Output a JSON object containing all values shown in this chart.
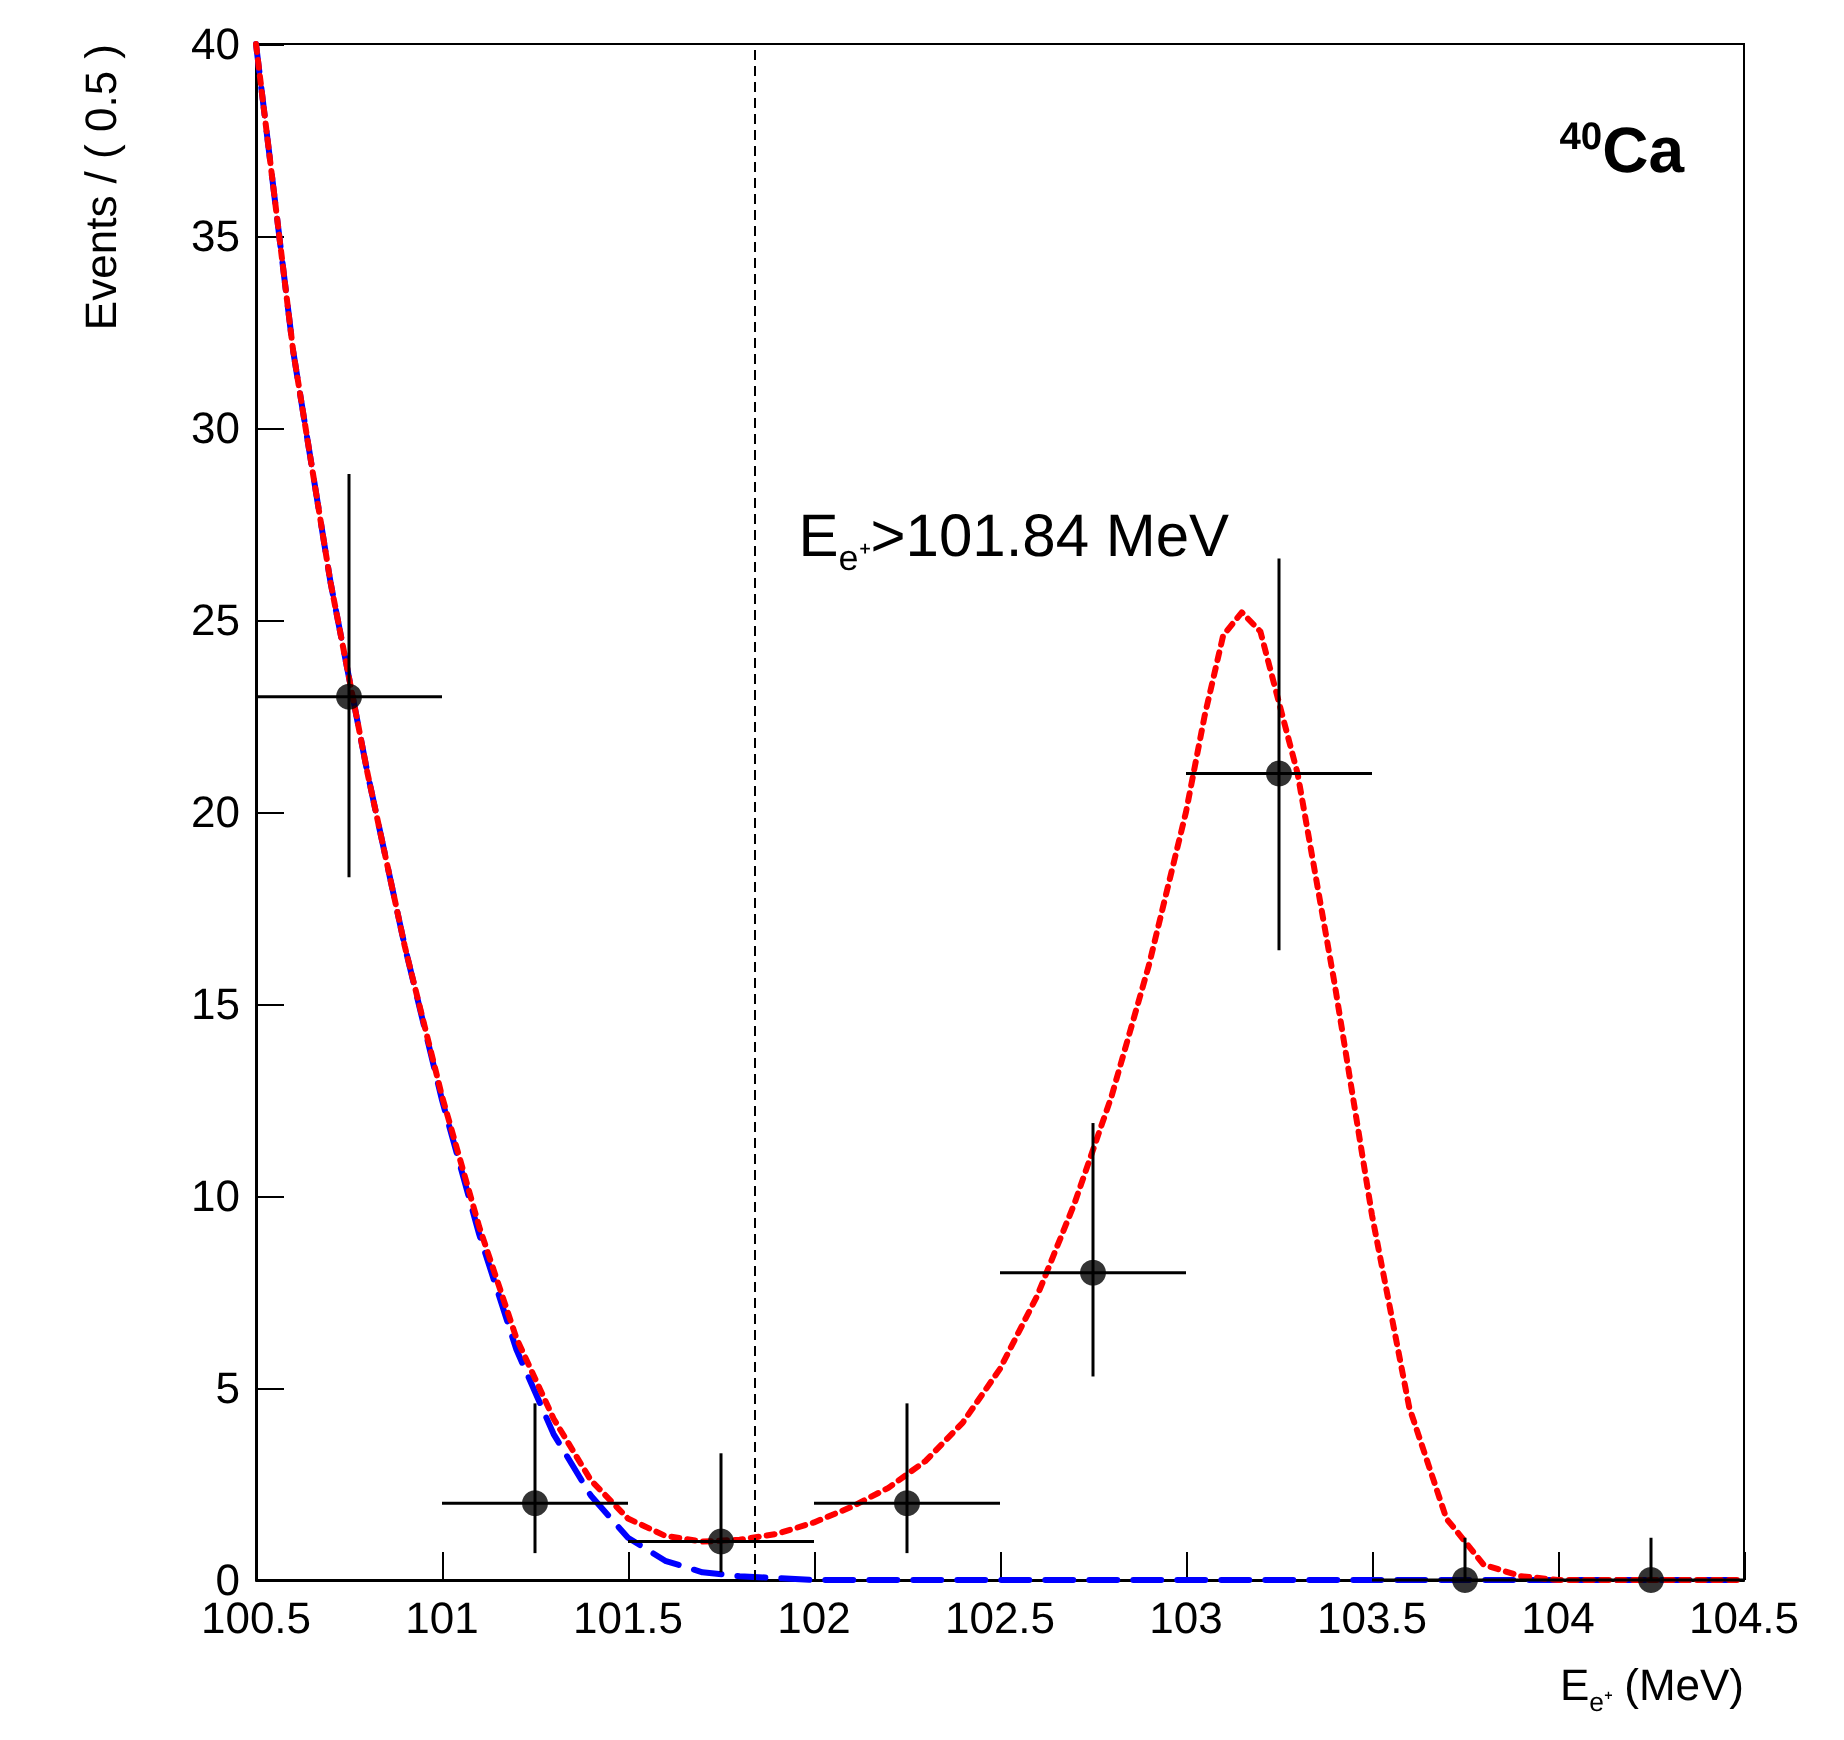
{
  "chart_data": {
    "type": "scatter",
    "xlabel": "E$_{e⁺}$ (MeV)",
    "ylabel": "Events / ( 0.5 )",
    "annotations": [
      "$^{40}$Ca"
    ],
    "xlim": [
      100.5,
      104.5
    ],
    "xticks": [
      100.5,
      101,
      101.5,
      102,
      102.5,
      103,
      103.5,
      104,
      104.5
    ],
    "ylim": [
      0,
      40
    ],
    "yticks": [
      0,
      5,
      10,
      15,
      20,
      25,
      30,
      35,
      40
    ],
    "grid": false,
    "ref_lines": [
      {
        "axis": "x",
        "value": 101.84,
        "label": "E$_{e⁺}$>101.84 MeV",
        "color": "#000000",
        "line_style": "dashed"
      }
    ],
    "series": [
      {
        "type": "line",
        "color": "#0000ff",
        "line_style": "dashed",
        "marker": "none",
        "x": [
          100.5,
          100.6,
          100.7,
          100.8,
          100.9,
          101.0,
          101.1,
          101.2,
          101.3,
          101.4,
          101.5,
          101.6,
          101.7,
          101.8,
          101.9,
          102.0,
          102.5,
          103,
          103.5,
          104,
          104.5
        ],
        "values": [
          40,
          32,
          26,
          21,
          16.5,
          12.5,
          9,
          6,
          3.8,
          2.2,
          1.1,
          0.5,
          0.2,
          0.1,
          0.05,
          0,
          0,
          0,
          0,
          0,
          0
        ]
      },
      {
        "type": "line",
        "color": "#ff0000",
        "line_style": "dotted",
        "marker": "none",
        "x": [
          100.5,
          100.6,
          100.7,
          100.8,
          100.9,
          101.0,
          101.1,
          101.2,
          101.3,
          101.4,
          101.5,
          101.6,
          101.7,
          101.8,
          101.9,
          102.0,
          102.1,
          102.2,
          102.3,
          102.4,
          102.5,
          102.6,
          102.7,
          102.8,
          102.9,
          103.0,
          103.05,
          103.1,
          103.15,
          103.2,
          103.3,
          103.4,
          103.5,
          103.6,
          103.7,
          103.8,
          103.9,
          104.0,
          104.5
        ],
        "values": [
          40,
          32,
          26,
          21,
          16.5,
          12.6,
          9.2,
          6.3,
          4.2,
          2.6,
          1.6,
          1.15,
          1.0,
          1.05,
          1.2,
          1.5,
          1.9,
          2.4,
          3.1,
          4.1,
          5.5,
          7.4,
          9.8,
          12.6,
          16,
          20,
          22.5,
          24.6,
          25.2,
          24.7,
          21,
          15.5,
          9.5,
          4.5,
          1.6,
          0.4,
          0.1,
          0,
          0
        ]
      },
      {
        "color": "#000000",
        "marker": "circle",
        "x": [
          100.75,
          101.25,
          101.75,
          102.25,
          102.75,
          103.25,
          103.75,
          104.25
        ],
        "values": [
          23,
          2,
          1,
          2,
          8,
          21,
          0,
          0
        ],
        "errors": [
          [
            18.3,
            28.8
          ],
          [
            0.7,
            4.6
          ],
          [
            0.2,
            3.3
          ],
          [
            0.7,
            4.6
          ],
          [
            5.3,
            11.9
          ],
          [
            16.4,
            26.6
          ],
          [
            0,
            1.1
          ],
          [
            0,
            1.1
          ]
        ],
        "xerrors": [
          0.25,
          0.25,
          0.25,
          0.25,
          0.25,
          0.25,
          0.25,
          0.25
        ]
      }
    ]
  }
}
